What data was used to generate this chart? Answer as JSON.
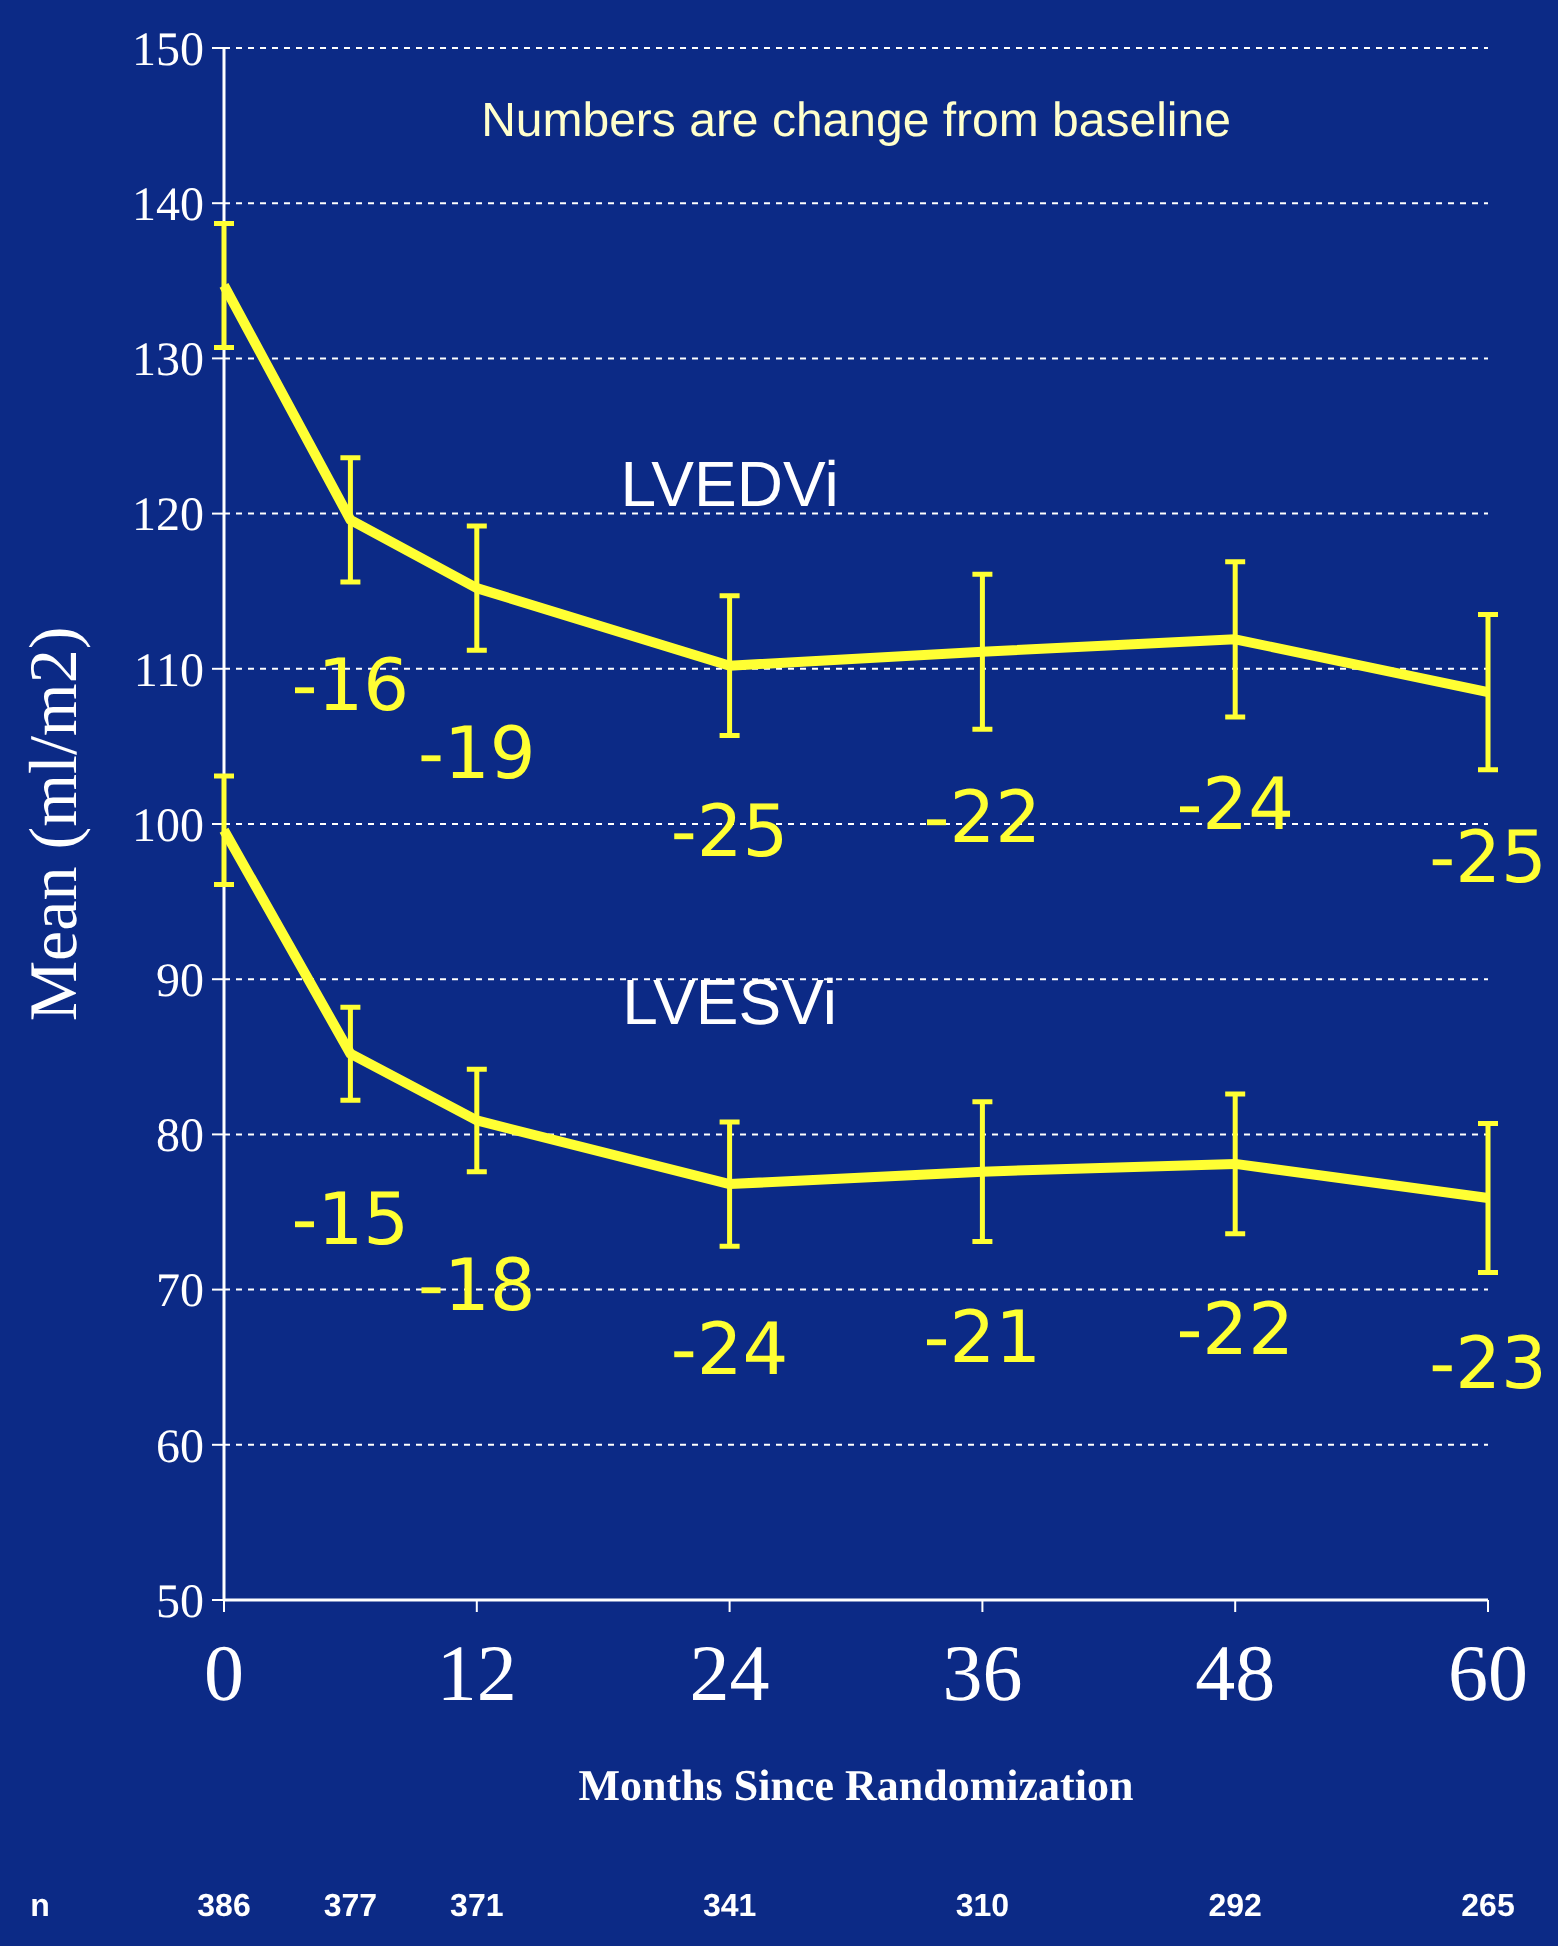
{
  "chart_data": {
    "type": "line",
    "title": "Numbers are change from baseline",
    "xlabel": "Months Since Randomization",
    "ylabel": "Mean (ml/m2)",
    "x": [
      0,
      6,
      12,
      24,
      36,
      48,
      60
    ],
    "series": [
      {
        "name": "LVEDVi",
        "color": "#ffff33",
        "values": [
          134.7,
          119.6,
          115.2,
          110.2,
          111.1,
          111.9,
          108.5
        ],
        "errors": [
          4,
          4,
          4,
          4.5,
          5,
          5,
          5
        ]
      },
      {
        "name": "LVESVi",
        "color": "#ffff33",
        "values": [
          99.6,
          85.2,
          80.9,
          76.8,
          77.6,
          78.1,
          75.9
        ],
        "errors": [
          3.5,
          3,
          3.3,
          4,
          4.5,
          4.5,
          4.8
        ]
      }
    ],
    "xlim": [
      0,
      60
    ],
    "xticks": [
      0,
      12,
      24,
      36,
      48,
      60
    ],
    "ylim": [
      50,
      150
    ],
    "yticks": [
      50,
      60,
      70,
      80,
      90,
      100,
      110,
      120,
      130,
      140,
      150
    ],
    "grid": "y",
    "marker": "none",
    "line_style": "solid",
    "annotations": [
      {
        "text": "-16",
        "x": 6,
        "y": 119.6
      },
      {
        "text": "-19",
        "x": 12,
        "y": 115.2
      },
      {
        "text": "-25",
        "x": 24,
        "y": 110.2
      },
      {
        "text": "-22",
        "x": 36,
        "y": 111.1
      },
      {
        "text": "-24",
        "x": 48,
        "y": 111.9
      },
      {
        "text": "-25",
        "x": 60,
        "y": 108.5
      },
      {
        "text": "-15",
        "x": 6,
        "y": 85.2
      },
      {
        "text": "-18",
        "x": 12,
        "y": 80.9
      },
      {
        "text": "-24",
        "x": 24,
        "y": 76.8
      },
      {
        "text": "-21",
        "x": 36,
        "y": 77.6
      },
      {
        "text": "-22",
        "x": 48,
        "y": 78.1
      },
      {
        "text": "-23",
        "x": 60,
        "y": 75.9
      },
      "n",
      "386",
      "377",
      "371",
      "341",
      "310",
      "292",
      "265"
    ]
  }
}
